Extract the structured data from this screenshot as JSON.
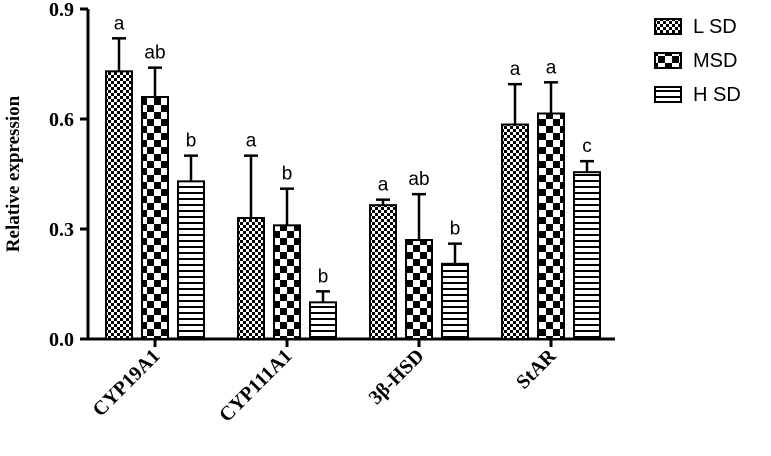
{
  "chart_data": {
    "type": "bar",
    "xlabel": "",
    "ylabel": "Relative expression",
    "ylim": [
      0,
      0.9
    ],
    "yticks": [
      "0.0",
      "0.3",
      "0.6",
      "0.9"
    ],
    "ytick_values": [
      0,
      0.3,
      0.6,
      0.9
    ],
    "categories": [
      "CYP19A1",
      "CYP111A1",
      "3β-HSD",
      "StAR"
    ],
    "series": [
      {
        "name": "LSD",
        "pattern": "fine-check",
        "values": [
          0.73,
          0.33,
          0.365,
          0.585
        ],
        "errors": [
          0.09,
          0.17,
          0.015,
          0.11
        ],
        "letters": [
          "a",
          "a",
          "a",
          "a"
        ]
      },
      {
        "name": "MSD",
        "pattern": "coarse-check",
        "values": [
          0.66,
          0.31,
          0.27,
          0.615
        ],
        "errors": [
          0.08,
          0.1,
          0.125,
          0.085
        ],
        "letters": [
          "ab",
          "b",
          "ab",
          "a"
        ]
      },
      {
        "name": "HSD",
        "pattern": "horizontal-lines",
        "values": [
          0.43,
          0.1,
          0.205,
          0.455
        ],
        "errors": [
          0.07,
          0.03,
          0.055,
          0.03
        ],
        "letters": [
          "b",
          "b",
          "b",
          "c"
        ]
      }
    ],
    "legend": {
      "placement": "top-right",
      "labels": [
        "L SD",
        "MSD",
        "H SD"
      ]
    },
    "grid": false
  }
}
